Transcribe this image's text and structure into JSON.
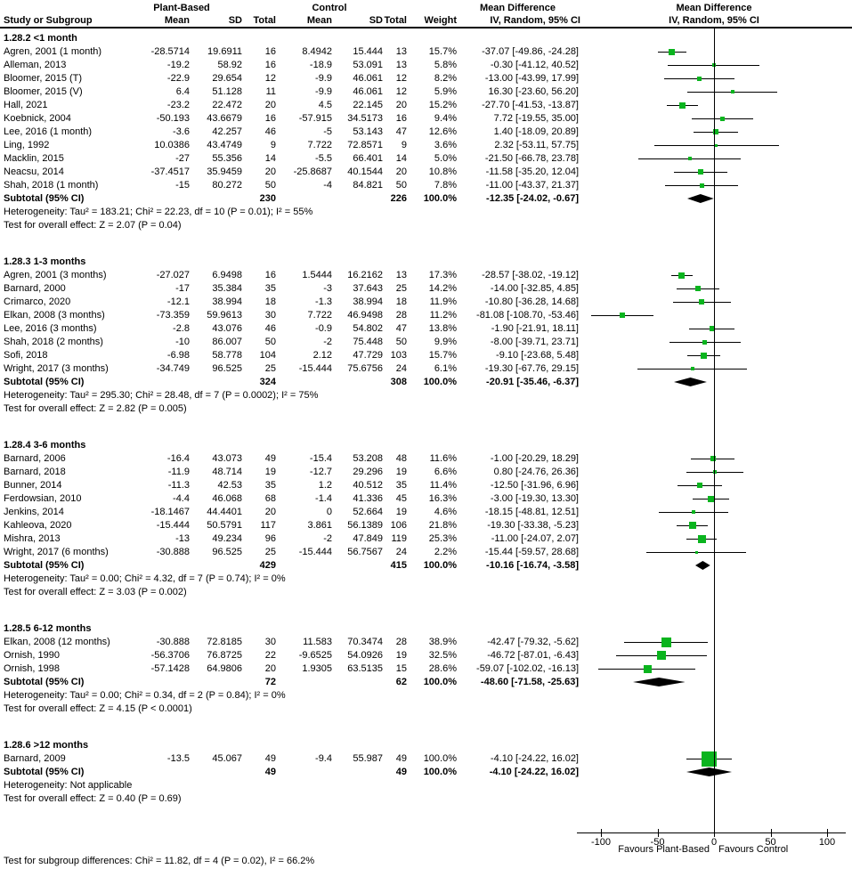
{
  "header": {
    "col_group_plant": "Plant-Based",
    "col_group_control": "Control",
    "col_group_md_text": "Mean Difference",
    "col_group_md_plot": "Mean Difference",
    "study": "Study or Subgroup",
    "mean1": "Mean",
    "sd1": "SD",
    "total1": "Total",
    "mean2": "Mean",
    "sd2": "SD",
    "total2": "Total",
    "weight": "Weight",
    "method_text": "IV, Random, 95% CI",
    "method_plot": "IV, Random, 95% CI"
  },
  "colors": {
    "marker_green": "#0ab41e",
    "diamond_black": "#000000",
    "line_black": "#000000"
  },
  "chart_data": {
    "type": "forest",
    "effect_measure": "Mean Difference",
    "model": "IV, Random, 95% CI",
    "x_axis": {
      "ticks": [
        -100,
        -50,
        0,
        50,
        100
      ],
      "min": -120,
      "max": 115,
      "favours_left": "Favours Plant-Based",
      "favours_right": "Favours Control"
    },
    "sections": [
      {
        "label": "1.28.2 <1 month",
        "studies": [
          {
            "study": "Agren, 2001 (1 month)",
            "mean1": "-28.5714",
            "sd1": "19.6911",
            "total1": "16",
            "mean2": "8.4942",
            "sd2": "15.444",
            "total2": "13",
            "weight": "15.7%",
            "ci_label": "-37.07 [-49.86, -24.28]",
            "md": -37.07,
            "lo": -49.86,
            "hi": -24.28
          },
          {
            "study": "Alleman, 2013",
            "mean1": "-19.2",
            "sd1": "58.92",
            "total1": "16",
            "mean2": "-18.9",
            "sd2": "53.091",
            "total2": "13",
            "weight": "5.8%",
            "ci_label": "-0.30 [-41.12, 40.52]",
            "md": -0.3,
            "lo": -41.12,
            "hi": 40.52
          },
          {
            "study": "Bloomer, 2015 (T)",
            "mean1": "-22.9",
            "sd1": "29.654",
            "total1": "12",
            "mean2": "-9.9",
            "sd2": "46.061",
            "total2": "12",
            "weight": "8.2%",
            "ci_label": "-13.00 [-43.99, 17.99]",
            "md": -13.0,
            "lo": -43.99,
            "hi": 17.99
          },
          {
            "study": "Bloomer, 2015 (V)",
            "mean1": "6.4",
            "sd1": "51.128",
            "total1": "11",
            "mean2": "-9.9",
            "sd2": "46.061",
            "total2": "12",
            "weight": "5.9%",
            "ci_label": "16.30 [-23.60, 56.20]",
            "md": 16.3,
            "lo": -23.6,
            "hi": 56.2
          },
          {
            "study": "Hall, 2021",
            "mean1": "-23.2",
            "sd1": "22.472",
            "total1": "20",
            "mean2": "4.5",
            "sd2": "22.145",
            "total2": "20",
            "weight": "15.2%",
            "ci_label": "-27.70 [-41.53, -13.87]",
            "md": -27.7,
            "lo": -41.53,
            "hi": -13.87
          },
          {
            "study": "Koebnick, 2004",
            "mean1": "-50.193",
            "sd1": "43.6679",
            "total1": "16",
            "mean2": "-57.915",
            "sd2": "34.5173",
            "total2": "16",
            "weight": "9.4%",
            "ci_label": "7.72 [-19.55, 35.00]",
            "md": 7.72,
            "lo": -19.55,
            "hi": 35.0
          },
          {
            "study": "Lee, 2016 (1 month)",
            "mean1": "-3.6",
            "sd1": "42.257",
            "total1": "46",
            "mean2": "-5",
            "sd2": "53.143",
            "total2": "47",
            "weight": "12.6%",
            "ci_label": "1.40 [-18.09, 20.89]",
            "md": 1.4,
            "lo": -18.09,
            "hi": 20.89
          },
          {
            "study": "Ling, 1992",
            "mean1": "10.0386",
            "sd1": "43.4749",
            "total1": "9",
            "mean2": "7.722",
            "sd2": "72.8571",
            "total2": "9",
            "weight": "3.6%",
            "ci_label": "2.32 [-53.11, 57.75]",
            "md": 2.32,
            "lo": -53.11,
            "hi": 57.75
          },
          {
            "study": "Macklin, 2015",
            "mean1": "-27",
            "sd1": "55.356",
            "total1": "14",
            "mean2": "-5.5",
            "sd2": "66.401",
            "total2": "14",
            "weight": "5.0%",
            "ci_label": "-21.50 [-66.78, 23.78]",
            "md": -21.5,
            "lo": -66.78,
            "hi": 23.78
          },
          {
            "study": "Neacsu, 2014",
            "mean1": "-37.4517",
            "sd1": "35.9459",
            "total1": "20",
            "mean2": "-25.8687",
            "sd2": "40.1544",
            "total2": "20",
            "weight": "10.8%",
            "ci_label": "-11.58 [-35.20, 12.04]",
            "md": -11.58,
            "lo": -35.2,
            "hi": 12.04
          },
          {
            "study": "Shah, 2018 (1 month)",
            "mean1": "-15",
            "sd1": "80.272",
            "total1": "50",
            "mean2": "-4",
            "sd2": "84.821",
            "total2": "50",
            "weight": "7.8%",
            "ci_label": "-11.00 [-43.37, 21.37]",
            "md": -11.0,
            "lo": -43.37,
            "hi": 21.37
          }
        ],
        "subtotal": {
          "label": "Subtotal (95% CI)",
          "total1": "230",
          "total2": "226",
          "weight": "100.0%",
          "ci_label": "-12.35 [-24.02, -0.67]",
          "md": -12.35,
          "lo": -24.02,
          "hi": -0.67
        },
        "heterogeneity": "Heterogeneity: Tau² = 183.21; Chi² = 22.23, df = 10 (P = 0.01); I² = 55%",
        "overall": "Test for overall effect: Z = 2.07 (P = 0.04)"
      },
      {
        "label": "1.28.3 1-3 months",
        "studies": [
          {
            "study": "Agren, 2001 (3 months)",
            "mean1": "-27.027",
            "sd1": "6.9498",
            "total1": "16",
            "mean2": "1.5444",
            "sd2": "16.2162",
            "total2": "13",
            "weight": "17.3%",
            "ci_label": "-28.57 [-38.02, -19.12]",
            "md": -28.57,
            "lo": -38.02,
            "hi": -19.12
          },
          {
            "study": "Barnard, 2000",
            "mean1": "-17",
            "sd1": "35.384",
            "total1": "35",
            "mean2": "-3",
            "sd2": "37.643",
            "total2": "25",
            "weight": "14.2%",
            "ci_label": "-14.00 [-32.85, 4.85]",
            "md": -14.0,
            "lo": -32.85,
            "hi": 4.85
          },
          {
            "study": "Crimarco, 2020",
            "mean1": "-12.1",
            "sd1": "38.994",
            "total1": "18",
            "mean2": "-1.3",
            "sd2": "38.994",
            "total2": "18",
            "weight": "11.9%",
            "ci_label": "-10.80 [-36.28, 14.68]",
            "md": -10.8,
            "lo": -36.28,
            "hi": 14.68
          },
          {
            "study": "Elkan, 2008 (3 months)",
            "mean1": "-73.359",
            "sd1": "59.9613",
            "total1": "30",
            "mean2": "7.722",
            "sd2": "46.9498",
            "total2": "28",
            "weight": "11.2%",
            "ci_label": "-81.08 [-108.70, -53.46]",
            "md": -81.08,
            "lo": -108.7,
            "hi": -53.46
          },
          {
            "study": "Lee, 2016 (3 months)",
            "mean1": "-2.8",
            "sd1": "43.076",
            "total1": "46",
            "mean2": "-0.9",
            "sd2": "54.802",
            "total2": "47",
            "weight": "13.8%",
            "ci_label": "-1.90 [-21.91, 18.11]",
            "md": -1.9,
            "lo": -21.91,
            "hi": 18.11
          },
          {
            "study": "Shah, 2018 (2 months)",
            "mean1": "-10",
            "sd1": "86.007",
            "total1": "50",
            "mean2": "-2",
            "sd2": "75.448",
            "total2": "50",
            "weight": "9.9%",
            "ci_label": "-8.00 [-39.71, 23.71]",
            "md": -8.0,
            "lo": -39.71,
            "hi": 23.71
          },
          {
            "study": "Sofi, 2018",
            "mean1": "-6.98",
            "sd1": "58.778",
            "total1": "104",
            "mean2": "2.12",
            "sd2": "47.729",
            "total2": "103",
            "weight": "15.7%",
            "ci_label": "-9.10 [-23.68, 5.48]",
            "md": -9.1,
            "lo": -23.68,
            "hi": 5.48
          },
          {
            "study": "Wright, 2017 (3 months)",
            "mean1": "-34.749",
            "sd1": "96.525",
            "total1": "25",
            "mean2": "-15.444",
            "sd2": "75.6756",
            "total2": "24",
            "weight": "6.1%",
            "ci_label": "-19.30 [-67.76, 29.15]",
            "md": -19.3,
            "lo": -67.76,
            "hi": 29.15
          }
        ],
        "subtotal": {
          "label": "Subtotal (95% CI)",
          "total1": "324",
          "total2": "308",
          "weight": "100.0%",
          "ci_label": "-20.91 [-35.46, -6.37]",
          "md": -20.91,
          "lo": -35.46,
          "hi": -6.37
        },
        "heterogeneity": "Heterogeneity: Tau² = 295.30; Chi² = 28.48, df = 7 (P = 0.0002); I² = 75%",
        "overall": "Test for overall effect: Z = 2.82 (P = 0.005)"
      },
      {
        "label": "1.28.4 3-6 months",
        "studies": [
          {
            "study": "Barnard, 2006",
            "mean1": "-16.4",
            "sd1": "43.073",
            "total1": "49",
            "mean2": "-15.4",
            "sd2": "53.208",
            "total2": "48",
            "weight": "11.6%",
            "ci_label": "-1.00 [-20.29, 18.29]",
            "md": -1.0,
            "lo": -20.29,
            "hi": 18.29
          },
          {
            "study": "Barnard, 2018",
            "mean1": "-11.9",
            "sd1": "48.714",
            "total1": "19",
            "mean2": "-12.7",
            "sd2": "29.296",
            "total2": "19",
            "weight": "6.6%",
            "ci_label": "0.80 [-24.76, 26.36]",
            "md": 0.8,
            "lo": -24.76,
            "hi": 26.36
          },
          {
            "study": "Bunner, 2014",
            "mean1": "-11.3",
            "sd1": "42.53",
            "total1": "35",
            "mean2": "1.2",
            "sd2": "40.512",
            "total2": "35",
            "weight": "11.4%",
            "ci_label": "-12.50 [-31.96, 6.96]",
            "md": -12.5,
            "lo": -31.96,
            "hi": 6.96
          },
          {
            "study": "Ferdowsian, 2010",
            "mean1": "-4.4",
            "sd1": "46.068",
            "total1": "68",
            "mean2": "-1.4",
            "sd2": "41.336",
            "total2": "45",
            "weight": "16.3%",
            "ci_label": "-3.00 [-19.30, 13.30]",
            "md": -3.0,
            "lo": -19.3,
            "hi": 13.3
          },
          {
            "study": "Jenkins, 2014",
            "mean1": "-18.1467",
            "sd1": "44.4401",
            "total1": "20",
            "mean2": "0",
            "sd2": "52.664",
            "total2": "19",
            "weight": "4.6%",
            "ci_label": "-18.15 [-48.81, 12.51]",
            "md": -18.15,
            "lo": -48.81,
            "hi": 12.51
          },
          {
            "study": "Kahleova, 2020",
            "mean1": "-15.444",
            "sd1": "50.5791",
            "total1": "117",
            "mean2": "3.861",
            "sd2": "56.1389",
            "total2": "106",
            "weight": "21.8%",
            "ci_label": "-19.30 [-33.38, -5.23]",
            "md": -19.3,
            "lo": -33.38,
            "hi": -5.23
          },
          {
            "study": "Mishra, 2013",
            "mean1": "-13",
            "sd1": "49.234",
            "total1": "96",
            "mean2": "-2",
            "sd2": "47.849",
            "total2": "119",
            "weight": "25.3%",
            "ci_label": "-11.00 [-24.07, 2.07]",
            "md": -11.0,
            "lo": -24.07,
            "hi": 2.07
          },
          {
            "study": "Wright, 2017 (6 months)",
            "mean1": "-30.888",
            "sd1": "96.525",
            "total1": "25",
            "mean2": "-15.444",
            "sd2": "56.7567",
            "total2": "24",
            "weight": "2.2%",
            "ci_label": "-15.44 [-59.57, 28.68]",
            "md": -15.44,
            "lo": -59.57,
            "hi": 28.68
          }
        ],
        "subtotal": {
          "label": "Subtotal (95% CI)",
          "total1": "429",
          "total2": "415",
          "weight": "100.0%",
          "ci_label": "-10.16 [-16.74, -3.58]",
          "md": -10.16,
          "lo": -16.74,
          "hi": -3.58
        },
        "heterogeneity": "Heterogeneity: Tau² = 0.00; Chi² = 4.32, df = 7 (P = 0.74); I² = 0%",
        "overall": "Test for overall effect: Z = 3.03 (P = 0.002)"
      },
      {
        "label": "1.28.5 6-12 months",
        "studies": [
          {
            "study": "Elkan, 2008 (12 months)",
            "mean1": "-30.888",
            "sd1": "72.8185",
            "total1": "30",
            "mean2": "11.583",
            "sd2": "70.3474",
            "total2": "28",
            "weight": "38.9%",
            "ci_label": "-42.47 [-79.32, -5.62]",
            "md": -42.47,
            "lo": -79.32,
            "hi": -5.62
          },
          {
            "study": "Ornish, 1990",
            "mean1": "-56.3706",
            "sd1": "76.8725",
            "total1": "22",
            "mean2": "-9.6525",
            "sd2": "54.0926",
            "total2": "19",
            "weight": "32.5%",
            "ci_label": "-46.72 [-87.01, -6.43]",
            "md": -46.72,
            "lo": -87.01,
            "hi": -6.43
          },
          {
            "study": "Ornish, 1998",
            "mean1": "-57.1428",
            "sd1": "64.9806",
            "total1": "20",
            "mean2": "1.9305",
            "sd2": "63.5135",
            "total2": "15",
            "weight": "28.6%",
            "ci_label": "-59.07 [-102.02, -16.13]",
            "md": -59.07,
            "lo": -102.02,
            "hi": -16.13
          }
        ],
        "subtotal": {
          "label": "Subtotal (95% CI)",
          "total1": "72",
          "total2": "62",
          "weight": "100.0%",
          "ci_label": "-48.60 [-71.58, -25.63]",
          "md": -48.6,
          "lo": -71.58,
          "hi": -25.63
        },
        "heterogeneity": "Heterogeneity: Tau² = 0.00; Chi² = 0.34, df = 2 (P = 0.84); I² = 0%",
        "overall": "Test for overall effect: Z = 4.15 (P < 0.0001)"
      },
      {
        "label": "1.28.6 >12 months",
        "studies": [
          {
            "study": "Barnard, 2009",
            "mean1": "-13.5",
            "sd1": "45.067",
            "total1": "49",
            "mean2": "-9.4",
            "sd2": "55.987",
            "total2": "49",
            "weight": "100.0%",
            "ci_label": "-4.10 [-24.22, 16.02]",
            "md": -4.1,
            "lo": -24.22,
            "hi": 16.02
          }
        ],
        "subtotal": {
          "label": "Subtotal (95% CI)",
          "total1": "49",
          "total2": "49",
          "weight": "100.0%",
          "ci_label": "-4.10 [-24.22, 16.02]",
          "md": -4.1,
          "lo": -24.22,
          "hi": 16.02
        },
        "heterogeneity": "Heterogeneity: Not applicable",
        "overall": "Test for overall effect: Z = 0.40 (P = 0.69)"
      }
    ],
    "footer": "Test for subgroup differences: Chi² = 11.82, df = 4 (P = 0.02), I² = 66.2%"
  }
}
